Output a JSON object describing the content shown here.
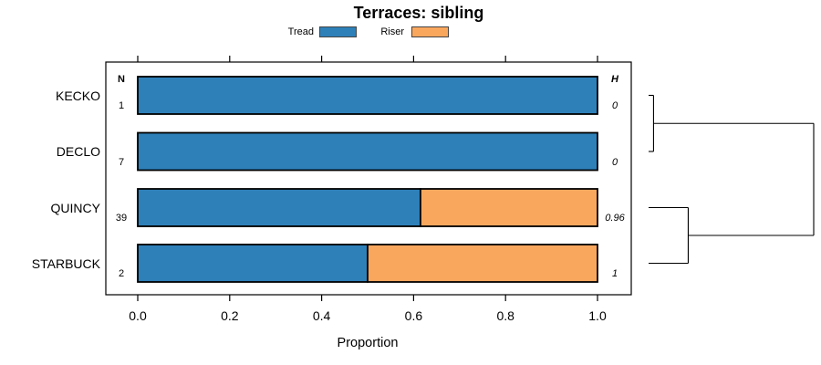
{
  "header": {
    "title": "Terraces: sibling"
  },
  "legend": {
    "items": [
      {
        "label": "Tread",
        "color": "#2E80B9"
      },
      {
        "label": "Riser",
        "color": "#FAA75E"
      }
    ]
  },
  "axis": {
    "xlabel": "Proportion"
  },
  "chart_data": {
    "type": "bar",
    "orientation": "horizontal",
    "stacked": true,
    "title": "Terraces: sibling",
    "xlabel": "Proportion",
    "xlim": [
      0,
      1
    ],
    "xticks": [
      "0.0",
      "0.2",
      "0.4",
      "0.6",
      "0.8",
      "1.0"
    ],
    "grid": false,
    "legend_position": "top-center",
    "categories": [
      "KECKO",
      "DECLO",
      "QUINCY",
      "STARBUCK"
    ],
    "columns": {
      "n_header": "N",
      "h_header": "H",
      "n_values": [
        "1",
        "7",
        "39",
        "2"
      ],
      "h_values": [
        "0",
        "0",
        "0.96",
        "1"
      ]
    },
    "series": [
      {
        "name": "Tread",
        "color": "#2E80B9",
        "values": [
          1.0,
          1.0,
          0.615,
          0.5
        ]
      },
      {
        "name": "Riser",
        "color": "#FAA75E",
        "values": [
          0.0,
          0.0,
          0.385,
          0.5
        ]
      }
    ],
    "dendrogram": {
      "leaf_order": [
        "KECKO",
        "DECLO",
        "QUINCY",
        "STARBUCK"
      ],
      "merges": [
        {
          "children": [
            "leaf:0",
            "leaf:1"
          ],
          "height": 0.03
        },
        {
          "children": [
            "leaf:2",
            "leaf:3"
          ],
          "height": 0.24
        },
        {
          "children": [
            "merge:0",
            "merge:1"
          ],
          "height": 1.0
        }
      ]
    }
  }
}
